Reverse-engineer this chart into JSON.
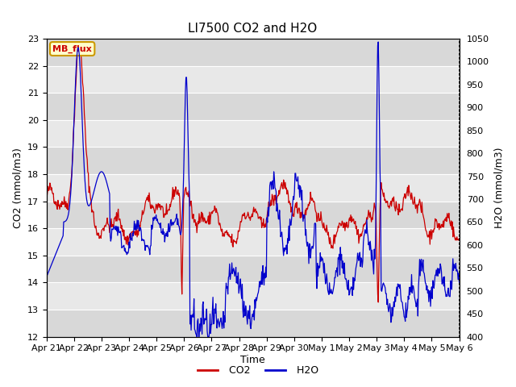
{
  "title": "LI7500 CO2 and H2O",
  "xlabel": "Time",
  "ylabel_left": "CO2 (mmol/m3)",
  "ylabel_right": "H2O (mmol/m3)",
  "co2_ylim": [
    12.0,
    23.0
  ],
  "h2o_ylim": [
    400,
    1050
  ],
  "co2_yticks": [
    12.0,
    13.0,
    14.0,
    15.0,
    16.0,
    17.0,
    18.0,
    19.0,
    20.0,
    21.0,
    22.0,
    23.0
  ],
  "h2o_yticks": [
    400,
    450,
    500,
    550,
    600,
    650,
    700,
    750,
    800,
    850,
    900,
    950,
    1000,
    1050
  ],
  "xtick_labels": [
    "Apr 21",
    "Apr 22",
    "Apr 23",
    "Apr 24",
    "Apr 25",
    "Apr 26",
    "Apr 27",
    "Apr 28",
    "Apr 29",
    "Apr 30",
    "May 1",
    "May 2",
    "May 3",
    "May 4",
    "May 5",
    "May 6"
  ],
  "fig_bg_color": "#ffffff",
  "plot_bg_color": "#e8e8e8",
  "grid_color": "#ffffff",
  "co2_color": "#cc0000",
  "h2o_color": "#0000cc",
  "annotation_text": "MB_flux",
  "annotation_bg": "#ffffcc",
  "annotation_border": "#cc9900",
  "title_fontsize": 11,
  "axis_label_fontsize": 9,
  "tick_fontsize": 8,
  "legend_fontsize": 9,
  "linewidth": 0.9
}
